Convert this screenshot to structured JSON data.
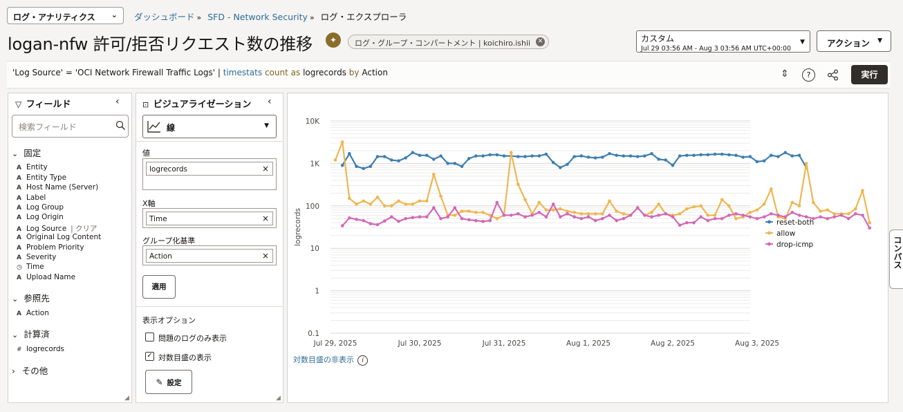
{
  "header": {
    "app_select": "ログ・アナリティクス",
    "breadcrumbs": [
      "ダッシュボード",
      "SFD - Network Security"
    ],
    "breadcrumb_current": "ログ・エクスプローラ",
    "title": "logan-nfw 許可/拒否リクエスト数の推移",
    "compartment_chip": "ログ・グループ・コンパートメント | koichiro.ishii",
    "time_range_label": "カスタム",
    "time_range_value": "Jul 29 03:56 AM - Aug 3 03:56 AM UTC+00:00",
    "action_button": "アクション"
  },
  "query": {
    "part1": "'Log Source' = 'OCI Network Firewall Traffic Logs' | ",
    "cmd": "timestats",
    "space1": " ",
    "func": "count",
    "space2": " ",
    "as": "as",
    "space3": " ",
    "alias": "logrecords",
    "space4": " ",
    "by": "by",
    "space5": " ",
    "field": "Action",
    "run_button": "実行"
  },
  "fields_panel": {
    "title": "フィールド",
    "search_placeholder": "検索フィールド",
    "pinned_label": "固定",
    "pinned": [
      "Entity",
      "Entity Type",
      "Host Name (Server)",
      "Label",
      "Log Group",
      "Log Origin",
      "Log Source",
      "Original Log Content",
      "Problem Priority",
      "Severity",
      "Time",
      "Upload Name"
    ],
    "clear_label": "| クリア",
    "interesting_label": "参照先",
    "interesting": [
      "Action"
    ],
    "calculated_label": "計算済",
    "calculated": [
      "logrecords"
    ],
    "other_label": "その他"
  },
  "viz_panel": {
    "title": "ビジュアライゼーション",
    "viz_type": "線",
    "value_label": "値",
    "value_field": "logrecords",
    "x_label": "X軸",
    "x_field": "Time",
    "group_label": "グループ化基準",
    "group_field": "Action",
    "apply_button": "適用",
    "display_options_label": "表示オプション",
    "option_problem_only": "問題のログのみ表示",
    "option_log_scale": "対数目盛の表示",
    "option_problem_only_checked": false,
    "option_log_scale_checked": true,
    "settings_button": "設定"
  },
  "chart_footer": {
    "toggle_log": "対数目盛の非表示"
  },
  "compass_label": "コンパス",
  "colors": {
    "reset-both": "#3d7eb0",
    "allow": "#f0b54f",
    "drop-icmp": "#d367b7",
    "run_button": "#312d2a",
    "link": "#2f6c97"
  },
  "chart_data": {
    "type": "line",
    "yscale": "log",
    "ylabel": "logrecords",
    "ylim": [
      0.1,
      10000
    ],
    "yticks": [
      0.1,
      1,
      10,
      100,
      1000,
      10000
    ],
    "yticklabels": [
      "0.1",
      "1",
      "10",
      "100",
      "1K",
      "10K"
    ],
    "xticklabels": [
      "Jul 29, 2025",
      "Jul 30, 2025",
      "Jul 31, 2025",
      "Aug 1, 2025",
      "Aug 2, 2025",
      "Aug 3, 2025"
    ],
    "x_points_per_day": 12,
    "legend": "right",
    "series": [
      {
        "name": "reset-both",
        "color": "#3d7eb0",
        "start_index": 1,
        "values": [
          900,
          1700,
          850,
          760,
          850,
          1450,
          1450,
          1200,
          1150,
          1350,
          1800,
          1550,
          1550,
          1250,
          1500,
          1000,
          1000,
          850,
          1300,
          1500,
          1500,
          1600,
          1600,
          1500,
          1500,
          1450,
          1450,
          1500,
          1500,
          1650,
          1050,
          800,
          950,
          1450,
          1500,
          1400,
          1350,
          1400,
          1700,
          1550,
          1500,
          1500,
          1450,
          1500,
          1700,
          1250,
          1200,
          900,
          1500,
          1550,
          1550,
          1600,
          1600,
          1650,
          1650,
          1600,
          1550,
          1400,
          1450,
          1100,
          1150,
          1550,
          1450,
          1800,
          1500,
          1550,
          800
        ]
      },
      {
        "name": "allow",
        "color": "#f0b54f",
        "start_index": 0,
        "values": [
          1200,
          3200,
          150,
          110,
          130,
          110,
          160,
          100,
          100,
          130,
          110,
          110,
          130,
          130,
          550,
          170,
          60,
          60,
          75,
          75,
          70,
          70,
          60,
          50,
          60,
          1800,
          320,
          140,
          65,
          120,
          80,
          80,
          85,
          75,
          70,
          65,
          65,
          65,
          65,
          130,
          75,
          65,
          60,
          90,
          60,
          70,
          110,
          65,
          60,
          65,
          85,
          95,
          100,
          60,
          60,
          140,
          100,
          50,
          55,
          70,
          80,
          110,
          250,
          55,
          50,
          120,
          100,
          1000,
          120,
          75,
          80,
          65,
          65,
          65,
          85,
          230,
          40
        ]
      },
      {
        "name": "drop-icmp",
        "color": "#d367b7",
        "start_index": 1,
        "values": [
          34,
          52,
          48,
          45,
          38,
          36,
          44,
          55,
          43,
          50,
          53,
          55,
          55,
          90,
          50,
          55,
          90,
          50,
          47,
          45,
          43,
          45,
          120,
          60,
          60,
          65,
          55,
          60,
          70,
          55,
          110,
          55,
          65,
          55,
          50,
          55,
          45,
          50,
          60,
          45,
          50,
          60,
          90,
          60,
          55,
          60,
          65,
          55,
          35,
          40,
          40,
          55,
          45,
          50,
          50,
          60,
          65,
          60,
          55,
          50,
          55,
          65,
          60,
          55,
          70,
          60,
          55,
          50,
          55,
          50,
          55,
          60,
          50,
          65,
          60,
          30
        ]
      }
    ]
  }
}
